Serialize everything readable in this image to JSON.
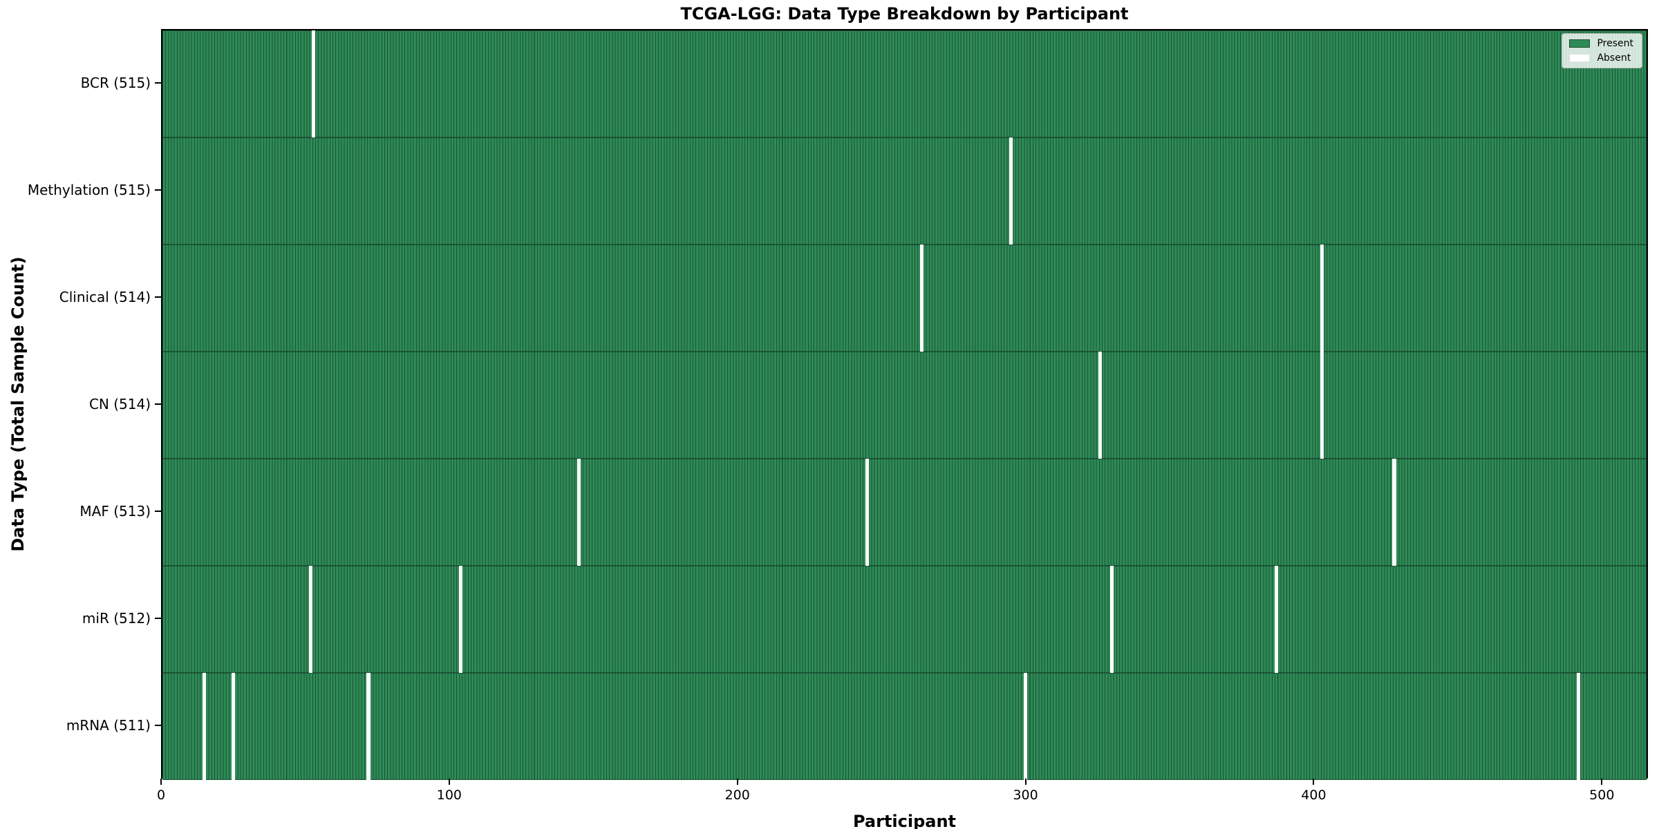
{
  "chart_data": {
    "type": "heatmap",
    "title": "TCGA-LGG: Data Type Breakdown by Participant",
    "xlabel": "Participant",
    "ylabel": "Data Type (Total Sample Count)",
    "x_ticks": [
      0,
      100,
      200,
      300,
      400,
      500
    ],
    "xlim": [
      0,
      516
    ],
    "n_participants": 516,
    "grid": false,
    "rows": [
      {
        "label": "BCR (515)",
        "data_type": "BCR",
        "present_count": 515,
        "absent_participants": [
          52
        ]
      },
      {
        "label": "Methylation (515)",
        "data_type": "Methylation",
        "present_count": 515,
        "absent_participants": [
          294
        ]
      },
      {
        "label": "Clinical (514)",
        "data_type": "Clinical",
        "present_count": 514,
        "absent_participants": [
          263,
          402
        ]
      },
      {
        "label": "CN (514)",
        "data_type": "CN",
        "present_count": 514,
        "absent_participants": [
          325,
          402
        ]
      },
      {
        "label": "MAF (513)",
        "data_type": "MAF",
        "present_count": 513,
        "absent_participants": [
          144,
          244,
          427
        ]
      },
      {
        "label": "miR (512)",
        "data_type": "miR",
        "present_count": 512,
        "absent_participants": [
          51,
          103,
          329,
          386
        ]
      },
      {
        "label": "mRNA (511)",
        "data_type": "mRNA",
        "present_count": 511,
        "absent_participants": [
          14,
          24,
          71,
          299,
          491
        ]
      }
    ],
    "legend": {
      "position": "upper right",
      "entries": [
        {
          "label": "Present",
          "color": "#2e8b57"
        },
        {
          "label": "Absent",
          "color": "#ffffff"
        }
      ]
    },
    "colors": {
      "present": "#2e8b57",
      "absent": "#ffffff",
      "bar_edge": "#1b5334",
      "axis": "#000000",
      "text": "#000000"
    }
  }
}
